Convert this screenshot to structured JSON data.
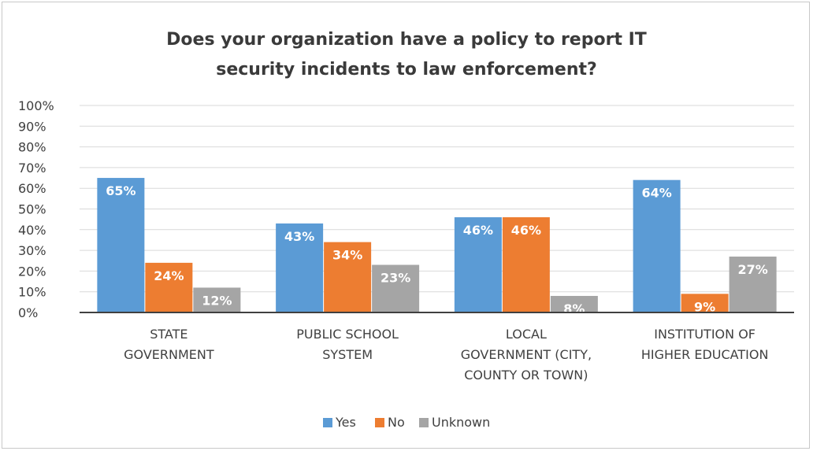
{
  "chart_data": {
    "type": "bar",
    "title_lines": [
      "Does your organization have a policy to report IT",
      "security incidents to law enforcement?"
    ],
    "categories": [
      [
        "STATE",
        "GOVERNMENT"
      ],
      [
        "PUBLIC SCHOOL",
        "SYSTEM"
      ],
      [
        "LOCAL",
        "GOVERNMENT (CITY,",
        "COUNTY OR TOWN)"
      ],
      [
        "INSTITUTION OF",
        "HIGHER EDUCATION"
      ]
    ],
    "series": [
      {
        "name": "Yes",
        "color": "#5b9bd5",
        "values": [
          65,
          43,
          46,
          64
        ],
        "labels": [
          "65%",
          "43%",
          "46%",
          "64%"
        ]
      },
      {
        "name": "No",
        "color": "#ed7d31",
        "values": [
          24,
          34,
          46,
          9
        ],
        "labels": [
          "24%",
          "34%",
          "46%",
          "9%"
        ]
      },
      {
        "name": "Unknown",
        "color": "#a5a5a5",
        "values": [
          12,
          23,
          8,
          27
        ],
        "labels": [
          "12%",
          "23%",
          "8%",
          "27%"
        ]
      }
    ],
    "yticks": [
      "0%",
      "10%",
      "20%",
      "30%",
      "40%",
      "50%",
      "60%",
      "70%",
      "80%",
      "90%",
      "100%"
    ],
    "ylim": [
      0,
      100
    ],
    "grid": true,
    "legend": "bottom"
  }
}
